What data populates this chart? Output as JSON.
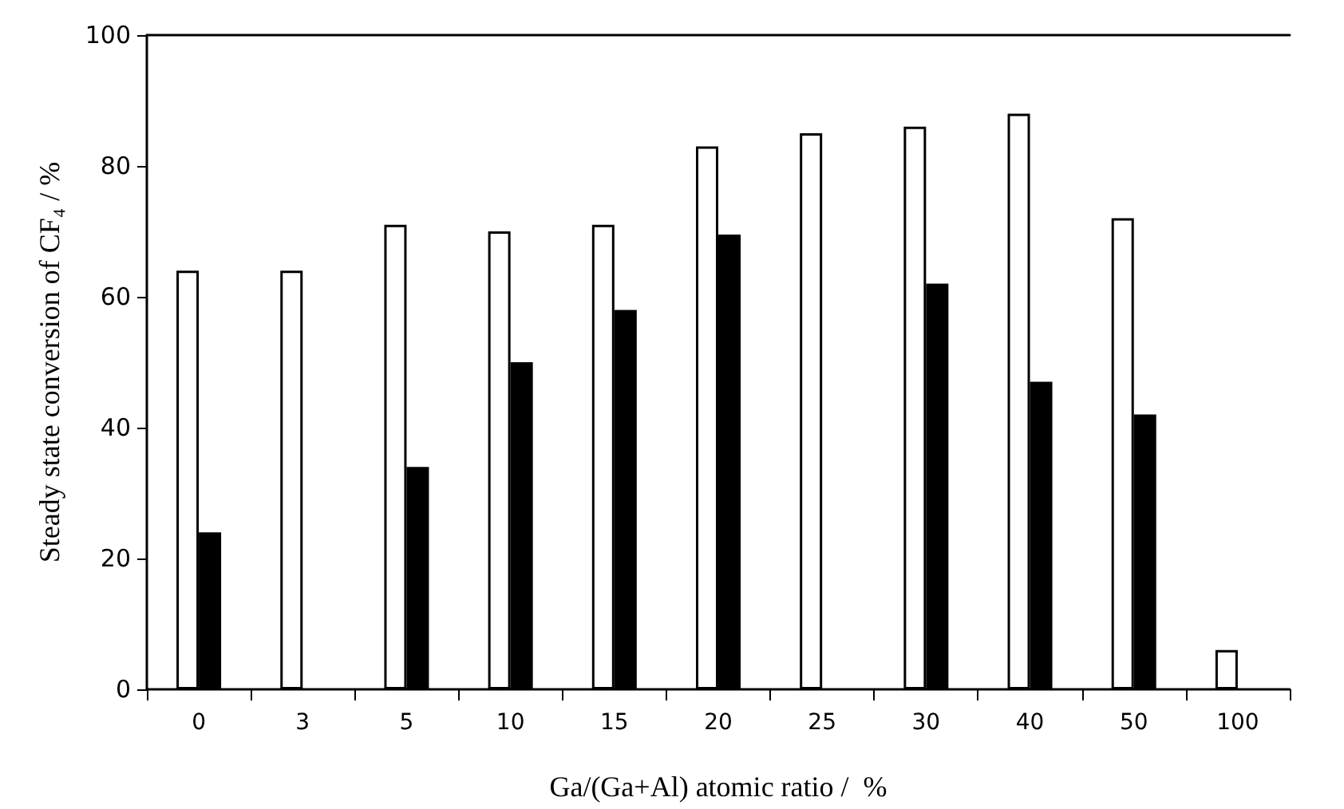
{
  "chart_data": {
    "type": "bar",
    "xlabel": "Ga/(Ga+Al) atomic ratio /  %",
    "ylabel": "Steady state conversion of CF₄ / %",
    "categories": [
      "0",
      "3",
      "5",
      "10",
      "15",
      "20",
      "25",
      "30",
      "40",
      "50",
      "100"
    ],
    "series": [
      {
        "color": "#ffffff",
        "values": [
          64,
          64,
          71,
          70,
          71,
          83,
          85,
          86,
          88,
          72,
          6
        ]
      },
      {
        "color": "#000000",
        "values": [
          24,
          null,
          34,
          50,
          58,
          69.5,
          null,
          62,
          47,
          42,
          null
        ]
      }
    ],
    "ylim": [
      0,
      100
    ],
    "yticks": [
      0,
      20,
      40,
      60,
      80,
      100
    ],
    "grid": false
  }
}
